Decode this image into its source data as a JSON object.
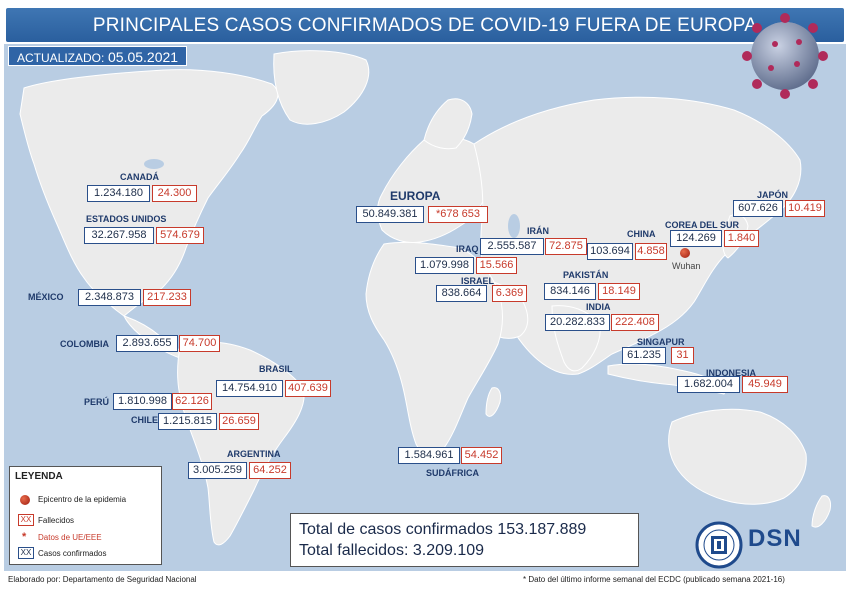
{
  "title": "PRINCIPALES CASOS CONFIRMADOS DE COVID-19 FUERA DE EUROPA",
  "updated": {
    "label": "ACTUALIZADO:",
    "date": " 05.05.2021"
  },
  "regions": {
    "canada": {
      "name": "CANADÁ",
      "confirmed": "1.234.180",
      "deaths": "24.300"
    },
    "usa": {
      "name": "ESTADOS UNIDOS",
      "confirmed": "32.267.958",
      "deaths": "574.679"
    },
    "mexico": {
      "name": "MÉXICO",
      "confirmed": "2.348.873",
      "deaths": "217.233"
    },
    "colombia": {
      "name": "COLOMBIA",
      "confirmed": "2.893.655",
      "deaths": "74.700"
    },
    "brasil": {
      "name": "BRASIL",
      "confirmed": "14.754.910",
      "deaths": "407.639"
    },
    "peru": {
      "name": "PERÚ",
      "confirmed": "1.810.998",
      "deaths": "62.126"
    },
    "chile": {
      "name": "CHILE",
      "confirmed": "1.215.815",
      "deaths": "26.659"
    },
    "argentina": {
      "name": "ARGENTINA",
      "confirmed": "3.005.259",
      "deaths": "64.252"
    },
    "europa": {
      "name": "EUROPA",
      "confirmed": "50.849.381",
      "deaths": "*678 653"
    },
    "iran": {
      "name": "IRÁN",
      "confirmed": "2.555.587",
      "deaths": "72.875"
    },
    "iraq": {
      "name": "IRAQ",
      "confirmed": "1.079.998",
      "deaths": "15.566"
    },
    "israel": {
      "name": "ISRAEL",
      "confirmed": "838.664",
      "deaths": "6.369"
    },
    "pakistan": {
      "name": "PAKISTÁN",
      "confirmed": "834.146",
      "deaths": "18.149"
    },
    "india": {
      "name": "INDIA",
      "confirmed": "20.282.833",
      "deaths": "222.408"
    },
    "china": {
      "name": "CHINA",
      "confirmed": "103.694",
      "deaths": "4.858"
    },
    "corea": {
      "name": "COREA DEL SUR",
      "confirmed": "124.269",
      "deaths": "1.840"
    },
    "japon": {
      "name": "JAPÓN",
      "confirmed": "607.626",
      "deaths": "10.419"
    },
    "singapur": {
      "name": "SINGAPUR",
      "confirmed": "61.235",
      "deaths": "31"
    },
    "indonesia": {
      "name": "INDONESIA",
      "confirmed": "1.682.004",
      "deaths": "45.949"
    },
    "sudafrica": {
      "name": "SUDÁFRICA",
      "confirmed": "1.584.961",
      "deaths": "54.452"
    }
  },
  "epicenter": {
    "city": "Wuhan"
  },
  "legend": {
    "title": "LEYENDA",
    "epicenter": "Epicentro de la epidemia",
    "symbol": "XX",
    "deaths": "Fallecidos",
    "asterisk": "*",
    "eu_data": "Datos de UE/EEE",
    "confirmed": "Casos confirmados"
  },
  "totals": {
    "confirmed_label": "Total de casos confirmados",
    "confirmed_value": "153.187.889",
    "deaths_label": "Total fallecidos:",
    "deaths_value": "3.209.109"
  },
  "logo_text": "DSN",
  "footer": {
    "left": "Elaborado por: Departamento de Seguridad Nacional",
    "right": "* Dato del último informe semanal del ECDC (publicado semana 2021-16)"
  },
  "colors": {
    "title_bar": "#2f64a6",
    "sea": "#b9cde3",
    "land": "#ebebeb",
    "confirmed_border": "#2a4f8a",
    "deaths_red": "#c73a2b",
    "region_label": "#1f3a6b"
  }
}
